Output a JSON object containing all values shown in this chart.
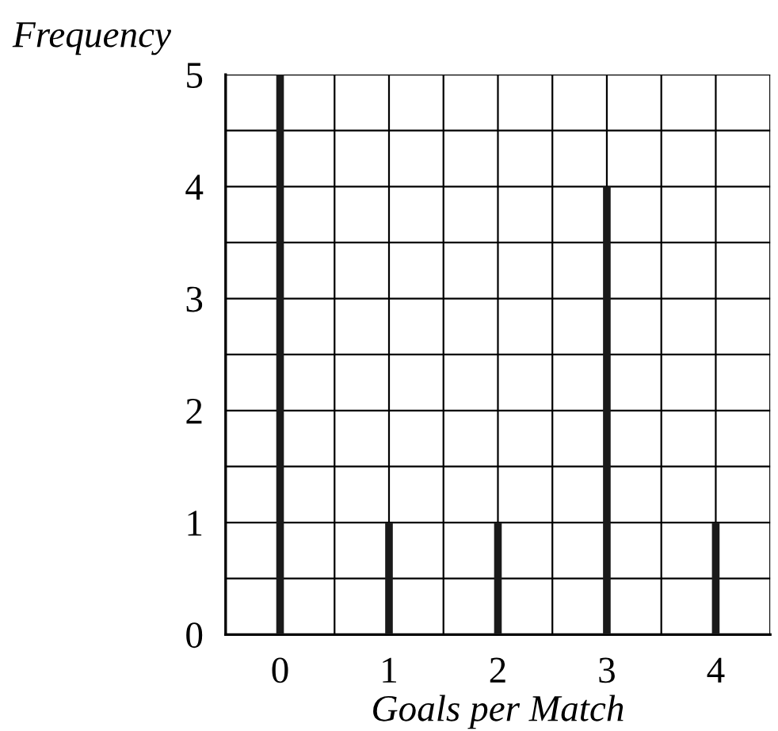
{
  "chart_data": {
    "type": "bar",
    "xlabel": "Goals per Match",
    "ylabel": "Frequency",
    "categories": [
      "0",
      "1",
      "2",
      "3",
      "4"
    ],
    "values": [
      5,
      1,
      1,
      4,
      1
    ],
    "color": "#1a1a1a",
    "ylim": [
      0,
      5
    ],
    "yticks": [
      0,
      {
        "value": 0.5,
        "label": null
      },
      1,
      {
        "value": 1.5,
        "label": null
      },
      2,
      {
        "value": 2.5,
        "label": null
      },
      3,
      {
        "value": 3.5,
        "label": null
      },
      4,
      {
        "value": 4.5,
        "label": null
      },
      5
    ],
    "grid": true
  }
}
